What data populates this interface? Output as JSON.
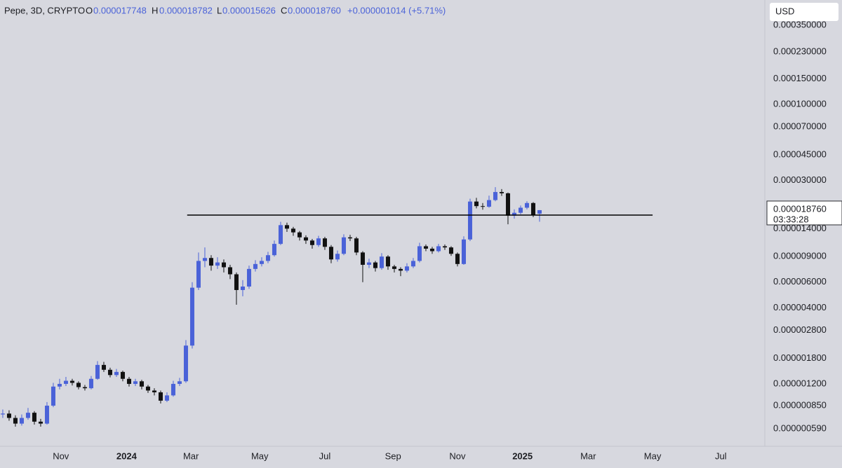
{
  "header": {
    "symbol": "Pepe, 3D, CRYPTO",
    "o_label": "O",
    "o": "0.000017748",
    "h_label": "H",
    "h": "0.000018782",
    "l_label": "L",
    "l": "0.000015626",
    "c_label": "C",
    "c": "0.000018760",
    "change": "+0.000001014 (+5.71%)",
    "currency": "USD"
  },
  "chart_data": {
    "type": "candlestick",
    "log_y": true,
    "up_color": "#4a62d8",
    "down_color": "#111111",
    "xlim": [
      -0.44,
      120.67
    ],
    "xticks": [
      {
        "value": 9.2,
        "label": "Nov"
      },
      {
        "value": 19.6,
        "label": "2024"
      },
      {
        "value": 29.8,
        "label": "Mar"
      },
      {
        "value": 40.7,
        "label": "May"
      },
      {
        "value": 51,
        "label": "Jul"
      },
      {
        "value": 61.8,
        "label": "Sep"
      },
      {
        "value": 72,
        "label": "Nov"
      },
      {
        "value": 82.3,
        "label": "2025"
      },
      {
        "value": 92.7,
        "label": "Mar"
      },
      {
        "value": 102.9,
        "label": "May"
      },
      {
        "value": 113.7,
        "label": "Jul"
      }
    ],
    "ylim": [
      4.57e-07,
      0.000522
    ],
    "yticks": [
      {
        "value": 0.00035,
        "label": "0.000350000"
      },
      {
        "value": 0.00023,
        "label": "0.000230000"
      },
      {
        "value": 0.00015,
        "label": "0.000150000"
      },
      {
        "value": 0.0001,
        "label": "0.000100000"
      },
      {
        "value": 7e-05,
        "label": "0.000070000"
      },
      {
        "value": 4.5e-05,
        "label": "0.000045000"
      },
      {
        "value": 3e-05,
        "label": "0.000030000"
      },
      {
        "value": 1.4e-05,
        "label": "0.000014000"
      },
      {
        "value": 9e-06,
        "label": "0.000009000"
      },
      {
        "value": 6e-06,
        "label": "0.000006000"
      },
      {
        "value": 4e-06,
        "label": "0.000004000"
      },
      {
        "value": 2.8e-06,
        "label": "0.000002800"
      },
      {
        "value": 1.8e-06,
        "label": "0.000001800"
      },
      {
        "value": 1.2e-06,
        "label": "0.000001200"
      },
      {
        "value": 8.5e-07,
        "label": "0.000000850"
      },
      {
        "value": 5.9e-07,
        "label": "0.000000590"
      }
    ],
    "last_price": {
      "value": 1.876e-05,
      "label": "0.000018760"
    },
    "countdown": "03:33:28",
    "hline": {
      "value": 1.735e-05,
      "x": [
        29.2,
        102.9
      ]
    },
    "open": [
      7.4e-07,
      7.5e-07,
      7e-07,
      6.4e-07,
      7e-07,
      7.6e-07,
      6.6e-07,
      6.4e-07,
      8.5e-07,
      1.15e-06,
      1.2e-06,
      1.26e-06,
      1.22e-06,
      1.14e-06,
      1.12e-06,
      1.3e-06,
      1.62e-06,
      1.5e-06,
      1.38e-06,
      1.45e-06,
      1.3e-06,
      1.2e-06,
      1.25e-06,
      1.15e-06,
      1.08e-06,
      1.05e-06,
      9.2e-07,
      1e-06,
      1.2e-06,
      1.25e-06,
      2.2e-06,
      5.5e-06,
      8.4e-06,
      8.8e-06,
      7.8e-06,
      8.2e-06,
      7.6e-06,
      6.8e-06,
      5.3e-06,
      5.6e-06,
      7.4e-06,
      8e-06,
      8.4e-06,
      9.2e-06,
      1.1e-05,
      1.48e-05,
      1.4e-05,
      1.32e-05,
      1.22e-05,
      1.16e-05,
      1.08e-05,
      1.2e-05,
      1.05e-05,
      8.6e-06,
      9.4e-06,
      1.22e-05,
      1.2e-05,
      9.6e-06,
      7.9e-06,
      8.2e-06,
      7.5e-06,
      9e-06,
      7.7e-06,
      7.4e-06,
      7.2e-06,
      7.7e-06,
      8.4e-06,
      1.06e-05,
      1.02e-05,
      9.8e-06,
      1.06e-05,
      1.04e-05,
      9.4e-06,
      8e-06,
      1.18e-05,
      2.15e-05,
      2e-05,
      1.98e-05,
      2.2e-05,
      2.5e-05,
      2.45e-05,
      1.72e-05,
      1.8e-05,
      1.95e-05,
      2.1e-05,
      1.7748e-05
    ],
    "high": [
      8e-07,
      7.9e-07,
      7.3e-07,
      7.4e-07,
      8.2e-07,
      7.8e-07,
      6.9e-07,
      9e-07,
      1.22e-06,
      1.3e-06,
      1.34e-06,
      1.3e-06,
      1.25e-06,
      1.18e-06,
      1.36e-06,
      1.72e-06,
      1.7e-06,
      1.55e-06,
      1.52e-06,
      1.48e-06,
      1.34e-06,
      1.3e-06,
      1.28e-06,
      1.18e-06,
      1.12e-06,
      1.08e-06,
      1.05e-06,
      1.26e-06,
      1.32e-06,
      2.4e-06,
      6e-06,
      9.6e-06,
      1.04e-05,
      9.2e-06,
      8.9e-06,
      8.6e-06,
      7.9e-06,
      7e-06,
      6.2e-06,
      7.8e-06,
      8.5e-06,
      8.9e-06,
      9.7e-06,
      1.16e-05,
      1.56e-05,
      1.54e-05,
      1.44e-05,
      1.35e-05,
      1.26e-05,
      1.19e-05,
      1.25e-05,
      1.23e-05,
      1.08e-05,
      9.9e-06,
      1.28e-05,
      1.27e-05,
      1.23e-05,
      9.8e-06,
      8.7e-06,
      8.4e-06,
      9.5e-06,
      9.2e-06,
      7.9e-06,
      7.6e-06,
      8.1e-06,
      8.8e-06,
      1.12e-05,
      1.09e-05,
      1.05e-05,
      1.1e-05,
      1.09e-05,
      1.06e-05,
      9.6e-06,
      1.24e-05,
      2.25e-05,
      2.28e-05,
      2.1e-05,
      2.36e-05,
      2.7e-05,
      2.62e-05,
      2.48e-05,
      1.9e-05,
      2.02e-05,
      2.16e-05,
      2.13e-05,
      1.8782e-05
    ],
    "low": [
      7e-07,
      6.7e-07,
      6.1e-07,
      6.2e-07,
      6.8e-07,
      6.3e-07,
      6.1e-07,
      6.3e-07,
      8.3e-07,
      1.1e-06,
      1.16e-06,
      1.17e-06,
      1.1e-06,
      1.08e-06,
      1.1e-06,
      1.28e-06,
      1.45e-06,
      1.33e-06,
      1.34e-06,
      1.25e-06,
      1.15e-06,
      1.16e-06,
      1.1e-06,
      1.04e-06,
      1e-06,
      8.8e-07,
      9e-07,
      9.8e-07,
      1.16e-06,
      1.22e-06,
      2.1e-06,
      5.3e-06,
      7.6e-06,
      7.2e-06,
      7.4e-06,
      7e-06,
      6.3e-06,
      4.2e-06,
      4.8e-06,
      5.4e-06,
      7.1e-06,
      7.7e-06,
      8.1e-06,
      9e-06,
      1.08e-05,
      1.33e-05,
      1.25e-05,
      1.16e-05,
      1.1e-05,
      1.02e-05,
      1.05e-05,
      1e-05,
      8.1e-06,
      8.3e-06,
      9.2e-06,
      1.15e-05,
      9.2e-06,
      6e-06,
      7.5e-06,
      7.1e-06,
      7.3e-06,
      7.3e-06,
      7e-06,
      6.6e-06,
      7e-06,
      7.5e-06,
      8.2e-06,
      9.8e-06,
      9.4e-06,
      9.6e-06,
      1e-05,
      9.1e-06,
      7.7e-06,
      7.9e-06,
      1.15e-05,
      1.93e-05,
      1.89e-05,
      1.95e-05,
      2.16e-05,
      2.35e-05,
      1.5e-05,
      1.64e-05,
      1.76e-05,
      1.9e-05,
      1.68e-05,
      1.5626e-05
    ],
    "close": [
      7.5e-07,
      7e-07,
      6.4e-07,
      7e-07,
      7.6e-07,
      6.6e-07,
      6.4e-07,
      8.5e-07,
      1.15e-06,
      1.2e-06,
      1.26e-06,
      1.22e-06,
      1.14e-06,
      1.12e-06,
      1.3e-06,
      1.62e-06,
      1.5e-06,
      1.38e-06,
      1.45e-06,
      1.3e-06,
      1.2e-06,
      1.25e-06,
      1.15e-06,
      1.08e-06,
      1.05e-06,
      9.2e-07,
      1e-06,
      1.2e-06,
      1.25e-06,
      2.2e-06,
      5.5e-06,
      8.4e-06,
      8.8e-06,
      7.8e-06,
      8.2e-06,
      7.6e-06,
      6.8e-06,
      5.3e-06,
      5.6e-06,
      7.4e-06,
      8e-06,
      8.4e-06,
      9.2e-06,
      1.1e-05,
      1.48e-05,
      1.4e-05,
      1.32e-05,
      1.22e-05,
      1.16e-05,
      1.08e-05,
      1.2e-05,
      1.05e-05,
      8.6e-06,
      9.4e-06,
      1.22e-05,
      1.2e-05,
      9.6e-06,
      7.9e-06,
      8.2e-06,
      7.5e-06,
      9e-06,
      7.7e-06,
      7.4e-06,
      7.2e-06,
      7.7e-06,
      8.4e-06,
      1.06e-05,
      1.02e-05,
      9.8e-06,
      1.06e-05,
      1.04e-05,
      9.4e-06,
      8e-06,
      1.18e-05,
      2.15e-05,
      2e-05,
      1.98e-05,
      2.2e-05,
      2.5e-05,
      2.45e-05,
      1.72e-05,
      1.8e-05,
      1.95e-05,
      2.1e-05,
      1.74e-05,
      1.876e-05
    ]
  }
}
